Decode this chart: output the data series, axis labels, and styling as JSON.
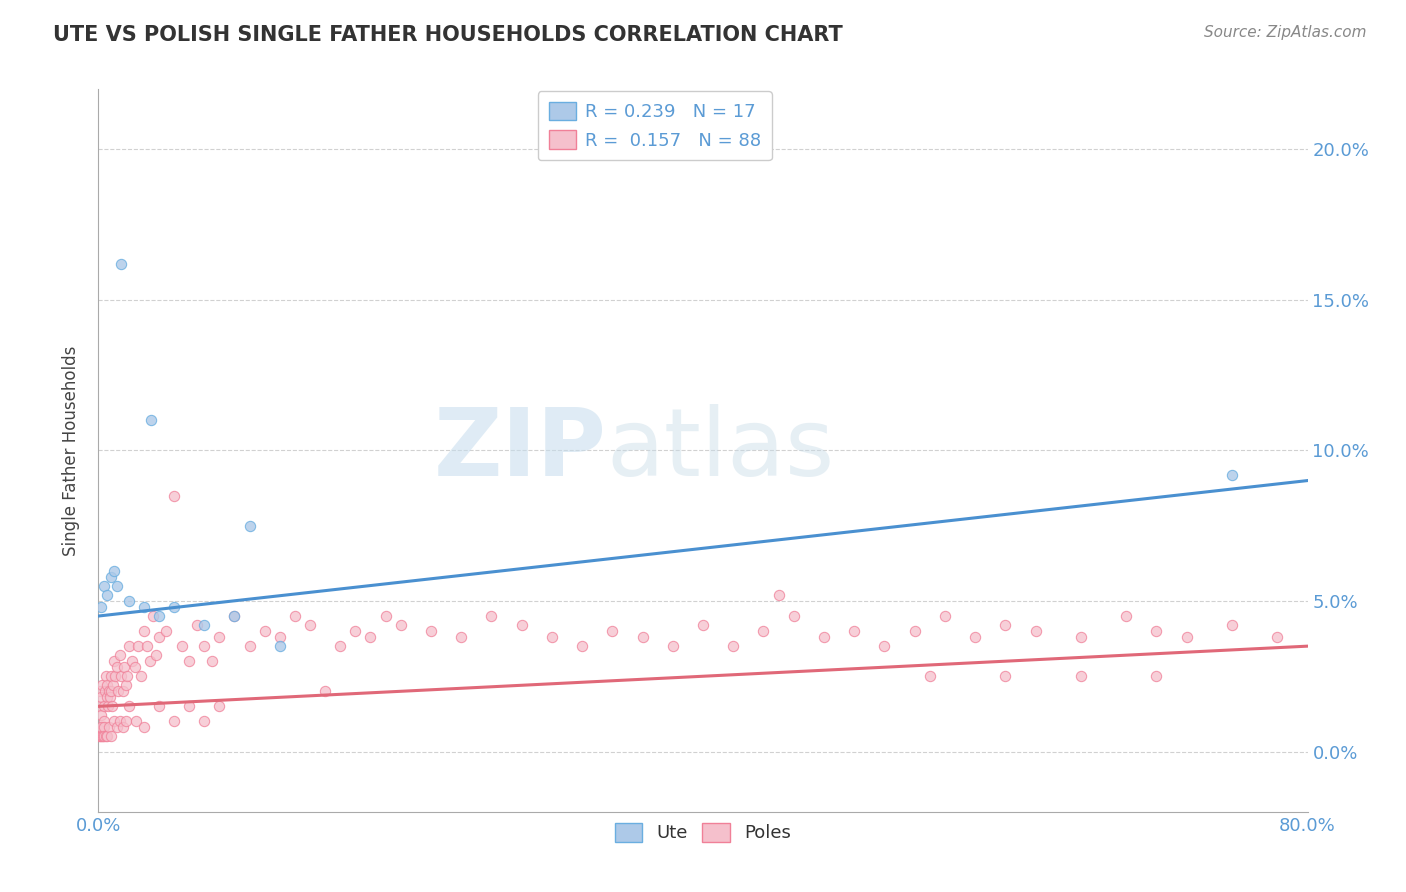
{
  "title": "UTE VS POLISH SINGLE FATHER HOUSEHOLDS CORRELATION CHART",
  "source": "Source: ZipAtlas.com",
  "ylabel": "Single Father Households",
  "xmin": 0.0,
  "xmax": 80.0,
  "ymin": -2.0,
  "ymax": 22.0,
  "yticks": [
    0,
    5,
    10,
    15,
    20
  ],
  "ytick_labels": [
    "0.0%",
    "5.0%",
    "10.0%",
    "15.0%",
    "20.0%"
  ],
  "legend_ute_R": "0.239",
  "legend_ute_N": "17",
  "legend_poles_R": "0.157",
  "legend_poles_N": "88",
  "watermark_zip": "ZIP",
  "watermark_atlas": "atlas",
  "ute_color": "#adc9e8",
  "ute_edge_color": "#6aaee0",
  "ute_line_color": "#4a90d0",
  "poles_color": "#f5c0cc",
  "poles_edge_color": "#f08098",
  "poles_line_color": "#e06878",
  "ute_scatter_x": [
    1.5,
    3.5,
    10.0,
    0.2,
    0.4,
    0.6,
    0.8,
    1.0,
    1.2,
    2.0,
    3.0,
    4.0,
    5.0,
    7.0,
    9.0,
    12.0,
    75.0
  ],
  "ute_scatter_y": [
    16.2,
    11.0,
    7.5,
    4.8,
    5.5,
    5.2,
    5.8,
    6.0,
    5.5,
    5.0,
    4.8,
    4.5,
    4.8,
    4.2,
    4.5,
    3.5,
    9.2
  ],
  "poles_scatter_x": [
    0.05,
    0.1,
    0.15,
    0.2,
    0.25,
    0.3,
    0.35,
    0.4,
    0.45,
    0.5,
    0.55,
    0.6,
    0.65,
    0.7,
    0.75,
    0.8,
    0.85,
    0.9,
    0.95,
    1.0,
    1.1,
    1.2,
    1.3,
    1.4,
    1.5,
    1.6,
    1.7,
    1.8,
    1.9,
    2.0,
    2.2,
    2.4,
    2.6,
    2.8,
    3.0,
    3.2,
    3.4,
    3.6,
    3.8,
    4.0,
    4.5,
    5.0,
    5.5,
    6.0,
    6.5,
    7.0,
    7.5,
    8.0,
    9.0,
    10.0,
    11.0,
    12.0,
    13.0,
    14.0,
    15.0,
    16.0,
    17.0,
    18.0,
    19.0,
    20.0,
    22.0,
    24.0,
    26.0,
    28.0,
    30.0,
    32.0,
    34.0,
    36.0,
    38.0,
    40.0,
    42.0,
    44.0,
    46.0,
    48.0,
    50.0,
    45.0,
    52.0,
    54.0,
    56.0,
    58.0,
    60.0,
    62.0,
    65.0,
    68.0,
    70.0,
    72.0,
    75.0,
    78.0
  ],
  "poles_scatter_y": [
    1.5,
    2.0,
    1.8,
    1.2,
    2.2,
    0.8,
    1.5,
    1.0,
    2.0,
    2.5,
    1.8,
    2.2,
    1.5,
    2.0,
    1.8,
    2.5,
    2.0,
    1.5,
    2.2,
    3.0,
    2.5,
    2.8,
    2.0,
    3.2,
    2.5,
    2.0,
    2.8,
    2.2,
    2.5,
    3.5,
    3.0,
    2.8,
    3.5,
    2.5,
    4.0,
    3.5,
    3.0,
    4.5,
    3.2,
    3.8,
    4.0,
    8.5,
    3.5,
    3.0,
    4.2,
    3.5,
    3.0,
    3.8,
    4.5,
    3.5,
    4.0,
    3.8,
    4.5,
    4.2,
    2.0,
    3.5,
    4.0,
    3.8,
    4.5,
    4.2,
    4.0,
    3.8,
    4.5,
    4.2,
    3.8,
    3.5,
    4.0,
    3.8,
    3.5,
    4.2,
    3.5,
    4.0,
    4.5,
    3.8,
    4.0,
    5.2,
    3.5,
    4.0,
    4.5,
    3.8,
    4.2,
    4.0,
    3.8,
    4.5,
    4.0,
    3.8,
    4.2,
    3.8
  ],
  "poles_extra_x": [
    0.05,
    0.1,
    0.15,
    0.2,
    0.25,
    0.3,
    0.35,
    0.4,
    0.5,
    0.6,
    0.7,
    0.8,
    1.0,
    1.2,
    1.4,
    1.6,
    1.8,
    2.0,
    2.5,
    3.0,
    4.0,
    5.0,
    6.0,
    7.0,
    8.0,
    55.0,
    60.0,
    65.0,
    70.0
  ],
  "poles_extra_y": [
    0.5,
    0.5,
    0.5,
    0.8,
    0.5,
    0.5,
    0.8,
    0.5,
    0.5,
    0.5,
    0.8,
    0.5,
    1.0,
    0.8,
    1.0,
    0.8,
    1.0,
    1.5,
    1.0,
    0.8,
    1.5,
    1.0,
    1.5,
    1.0,
    1.5,
    2.5,
    2.5,
    2.5,
    2.5
  ]
}
